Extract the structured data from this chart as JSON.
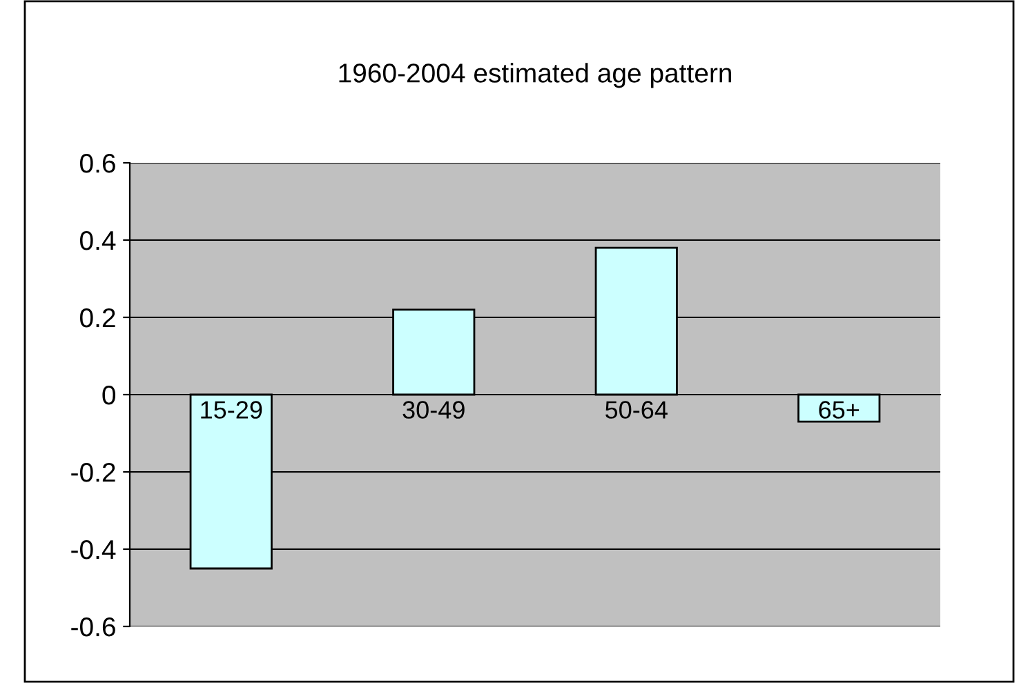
{
  "chart_data": {
    "type": "bar",
    "title": "1960-2004 estimated age pattern",
    "categories": [
      "15-29",
      "30-49",
      "50-64",
      "65+"
    ],
    "values": [
      -0.45,
      0.22,
      0.38,
      -0.07
    ],
    "color": "#ccffff",
    "ylim": [
      -0.6,
      0.6
    ],
    "yticks": [
      -0.6,
      -0.4,
      -0.2,
      0,
      0.2,
      0.4,
      0.6
    ],
    "grid": "y",
    "legend": false
  }
}
